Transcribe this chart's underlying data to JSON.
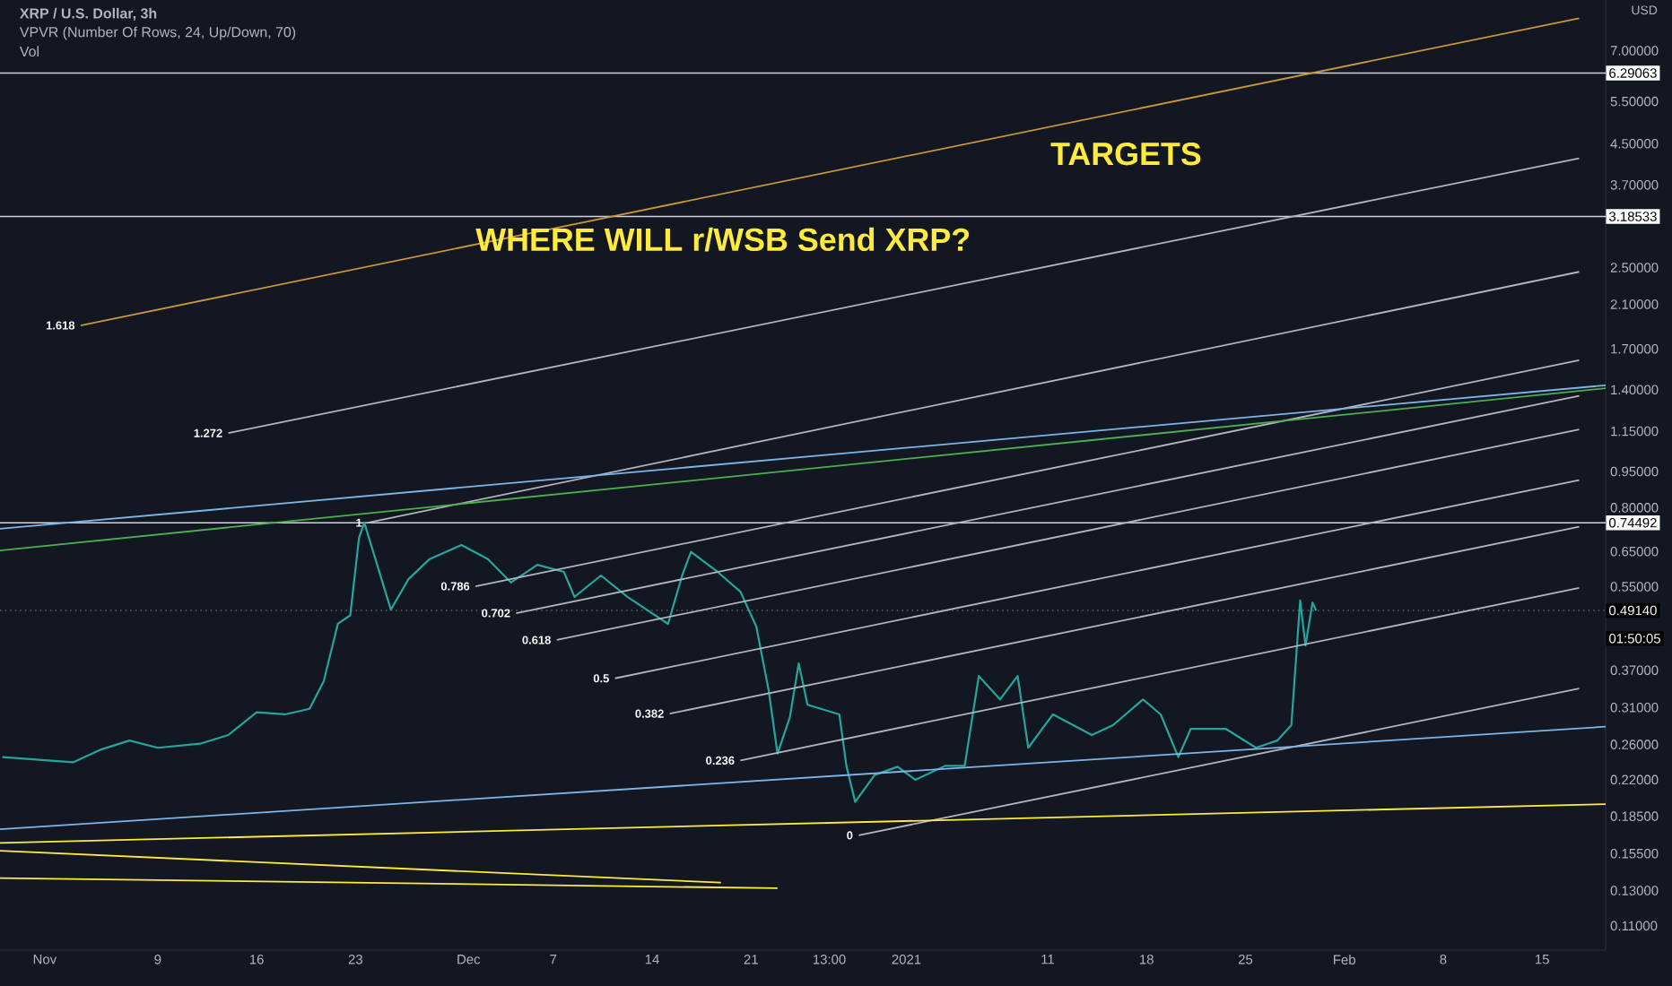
{
  "chart_data": {
    "type": "line",
    "title": "XRP / U.S. Dollar, 3h",
    "ylabel": "USD",
    "annotations": [
      "VPVR (Number Of Rows, 24, Up/Down, 70)",
      "Vol",
      "WHERE WILL r/WSB Send XRP?",
      "TARGETS",
      "01:50:05"
    ],
    "log": "y",
    "grid": false,
    "marker": "none",
    "line_style": "solid",
    "xlim": [
      "2020-10-28T20:00",
      "2021-02-19T12:00"
    ],
    "ylim": [
      0.098,
      8.9
    ],
    "xticks": [
      {
        "value": "2020-11-01",
        "label": "Nov"
      },
      {
        "value": "2020-11-09",
        "label": "9"
      },
      {
        "value": "2020-11-16",
        "label": "16"
      },
      {
        "value": "2020-11-23",
        "label": "23"
      },
      {
        "value": "2020-12-01",
        "label": "Dec"
      },
      {
        "value": "2020-12-07",
        "label": "7"
      },
      {
        "value": "2020-12-14",
        "label": "14"
      },
      {
        "value": "2020-12-21",
        "label": "21"
      },
      {
        "value": "2020-12-26T13:00",
        "label": "13:00"
      },
      {
        "value": "2021-01-01",
        "label": "2021"
      },
      {
        "value": "2021-01-11",
        "label": "11"
      },
      {
        "value": "2021-01-18",
        "label": "18"
      },
      {
        "value": "2021-01-25",
        "label": "25"
      },
      {
        "value": "2021-02-01",
        "label": "Feb"
      },
      {
        "value": "2021-02-08",
        "label": "8"
      },
      {
        "value": "2021-02-15",
        "label": "15"
      }
    ],
    "yticks": [
      {
        "value": 0.11,
        "label": "0.11000"
      },
      {
        "value": 0.13,
        "label": "0.13000"
      },
      {
        "value": 0.155,
        "label": "0.15500"
      },
      {
        "value": 0.185,
        "label": "0.18500"
      },
      {
        "value": 0.22,
        "label": "0.22000"
      },
      {
        "value": 0.26,
        "label": "0.26000"
      },
      {
        "value": 0.31,
        "label": "0.31000"
      },
      {
        "value": 0.37,
        "label": "0.37000"
      },
      {
        "value": 0.55,
        "label": "0.55000"
      },
      {
        "value": 0.65,
        "label": "0.65000"
      },
      {
        "value": 0.8,
        "label": "0.80000"
      },
      {
        "value": 0.95,
        "label": "0.95000"
      },
      {
        "value": 1.15,
        "label": "1.15000"
      },
      {
        "value": 1.4,
        "label": "1.40000"
      },
      {
        "value": 1.7,
        "label": "1.70000"
      },
      {
        "value": 2.1,
        "label": "2.10000"
      },
      {
        "value": 2.5,
        "label": "2.50000"
      },
      {
        "value": 3.7,
        "label": "3.70000"
      },
      {
        "value": 4.5,
        "label": "4.50000"
      },
      {
        "value": 5.5,
        "label": "5.50000"
      },
      {
        "value": 7,
        "label": "7.00000"
      }
    ],
    "ref_lines": [
      {
        "axis": "y",
        "value": 6.29063,
        "label": "6.29063",
        "color": "#d1d4dc",
        "line_style": "solid"
      },
      {
        "axis": "y",
        "value": 3.18533,
        "label": "3.18533",
        "color": "#d1d4dc",
        "line_style": "solid"
      },
      {
        "axis": "y",
        "value": 0.74492,
        "label": "0.74492",
        "color": "#d1d4dc",
        "line_style": "solid"
      },
      {
        "axis": "y",
        "value": 0.4914,
        "label": "0.49140",
        "color": "#5d606b",
        "line_style": "dotted"
      }
    ],
    "series": [
      {
        "color": "#26a69a",
        "x": [
          "2020-10-29",
          "2020-11-03",
          "2020-11-05",
          "2020-11-07",
          "2020-11-09",
          "2020-11-12",
          "2020-11-14",
          "2020-11-16",
          "2020-11-18",
          "2020-11-19T18:00",
          "2020-11-20T18:00",
          "2020-11-21T18:00",
          "2020-11-22T15:00",
          "2020-11-23T06:00",
          "2020-11-23T15:00",
          "2020-11-25T12:00",
          "2020-11-26T18:00",
          "2020-11-28T06:00",
          "2020-11-30T12:00",
          "2020-12-02T09:00",
          "2020-12-04",
          "2020-12-05T21:00",
          "2020-12-07T18:00",
          "2020-12-08T12:00",
          "2020-12-10T09:00",
          "2020-12-12T06:00",
          "2020-12-15T03:00",
          "2020-12-16T03:00",
          "2020-12-16T18:00",
          "2020-12-18T15:00",
          "2020-12-20T06:00",
          "2020-12-21T09:00",
          "2020-12-22T06:00",
          "2020-12-22T21:00",
          "2020-12-23T18:00",
          "2020-12-24T09:00",
          "2020-12-25",
          "2020-12-27T06:00",
          "2020-12-27T18:00",
          "2020-12-28T09:00",
          "2020-12-29T18:00",
          "2020-12-31T09:00",
          "2021-01-01T15:00",
          "2021-01-03T18:00",
          "2021-01-05T03:00",
          "2021-01-06T03:00",
          "2021-01-07T15:00",
          "2021-01-08T21:00",
          "2021-01-09T15:00",
          "2021-01-11T09:00",
          "2021-01-14T03:00",
          "2021-01-15T15:00",
          "2021-01-17T18:00",
          "2021-01-19",
          "2021-01-20T06:00",
          "2021-01-21T03:00",
          "2021-01-23T15:00",
          "2021-01-25T18:00",
          "2021-01-27T06:00",
          "2021-01-28T06:00",
          "2021-01-28T21:00",
          "2021-01-29T06:00",
          "2021-01-29T18:00",
          "2021-01-30"
        ],
        "values": [
          0.245,
          0.239,
          0.254,
          0.265,
          0.256,
          0.261,
          0.272,
          0.303,
          0.3,
          0.308,
          0.351,
          0.461,
          0.48,
          0.694,
          0.745,
          0.493,
          0.57,
          0.627,
          0.67,
          0.627,
          0.561,
          0.61,
          0.59,
          0.524,
          0.58,
          0.524,
          0.461,
          0.58,
          0.649,
          0.59,
          0.537,
          0.455,
          0.336,
          0.249,
          0.296,
          0.382,
          0.314,
          0.3,
          0.235,
          0.198,
          0.225,
          0.234,
          0.22,
          0.235,
          0.235,
          0.36,
          0.322,
          0.36,
          0.256,
          0.3,
          0.272,
          0.285,
          0.322,
          0.3,
          0.245,
          0.28,
          0.28,
          0.256,
          0.265,
          0.285,
          0.515,
          0.416,
          0.51,
          0.491
        ]
      },
      {
        "name": "1.618",
        "color": "#c8963c",
        "x": [
          "2020-11-03T13:00",
          "2021-02-17T15:00"
        ],
        "values": [
          1.9,
          8.16
        ]
      },
      {
        "name": "1.272",
        "color": "#b2b5be",
        "x": [
          "2020-11-14",
          "2021-02-17T15:00"
        ],
        "values": [
          1.14,
          4.2
        ]
      },
      {
        "name": "1",
        "color": "#b2b5be",
        "x": [
          "2020-11-23T21:00",
          "2021-02-17T15:00"
        ],
        "values": [
          0.745,
          2.45
        ]
      },
      {
        "name": "0.786",
        "color": "#b2b5be",
        "x": [
          "2020-12-01T12:00",
          "2021-02-17T15:00"
        ],
        "values": [
          0.551,
          1.61
        ]
      },
      {
        "name": "0.702",
        "color": "#b2b5be",
        "x": [
          "2020-12-04T09:00",
          "2021-02-17T15:00"
        ],
        "values": [
          0.485,
          1.36
        ]
      },
      {
        "name": "0.618",
        "color": "#b2b5be",
        "x": [
          "2020-12-07T06:00",
          "2021-02-17T15:00"
        ],
        "values": [
          0.427,
          1.16
        ]
      },
      {
        "name": "0.5",
        "color": "#b2b5be",
        "x": [
          "2020-12-11T09:00",
          "2021-02-17T15:00"
        ],
        "values": [
          0.356,
          0.912
        ]
      },
      {
        "name": "0.382",
        "color": "#b2b5be",
        "x": [
          "2020-12-15T06:00",
          "2021-02-17T15:00"
        ],
        "values": [
          0.301,
          0.731
        ]
      },
      {
        "name": "0.236",
        "color": "#b2b5be",
        "x": [
          "2020-12-20T06:00",
          "2021-02-17T15:00"
        ],
        "values": [
          0.241,
          0.547
        ]
      },
      {
        "name": "0",
        "color": "#b2b5be",
        "x": [
          "2020-12-28T15:00",
          "2021-02-17T15:00"
        ],
        "values": [
          0.169,
          0.339
        ]
      },
      {
        "color": "#7fb4e6",
        "x": [
          "2020-10-28T20:00",
          "2021-02-19T12:00"
        ],
        "values": [
          0.724,
          1.43
        ]
      },
      {
        "color": "#4caf50",
        "x": [
          "2020-10-28T20:00",
          "2021-02-19T12:00"
        ],
        "values": [
          0.653,
          1.41
        ]
      },
      {
        "color": "#7fb4e6",
        "x": [
          "2020-10-28T20:00",
          "2021-02-19T12:00"
        ],
        "values": [
          0.174,
          0.283
        ]
      },
      {
        "color": "#ffeb3b",
        "x": [
          "2020-10-28T20:00",
          "2021-02-19T12:00"
        ],
        "values": [
          0.163,
          0.196
        ]
      },
      {
        "color": "#ffeb3b",
        "x": [
          "2020-10-28T20:00",
          "2020-12-18T21:00"
        ],
        "values": [
          0.157,
          0.135
        ]
      },
      {
        "color": "#ffeb3b",
        "x": [
          "2020-10-28T20:00",
          "2020-12-22T21:00"
        ],
        "values": [
          0.138,
          0.1315
        ]
      }
    ]
  }
}
